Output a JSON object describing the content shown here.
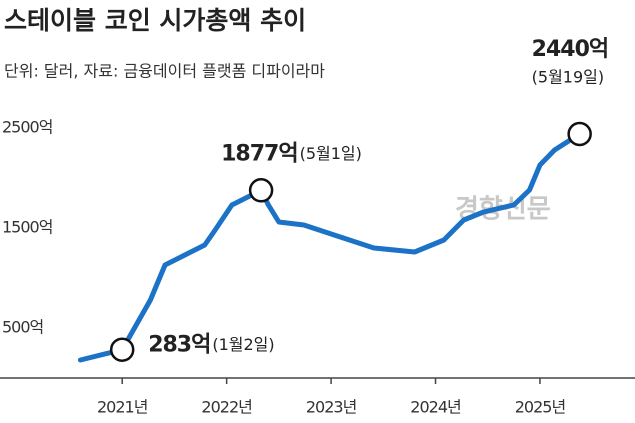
{
  "chart_data": {
    "type": "line",
    "title": "스테이블 코인 시가총액 추이",
    "subtitle": "단위: 달러, 자료: 금융데이터 플랫폼 디파이라마",
    "watermark": "경향신문",
    "x": [
      2020.6,
      2021.0,
      2021.27,
      2021.41,
      2021.6,
      2021.79,
      2021.89,
      2022.05,
      2022.33,
      2022.4,
      2022.5,
      2022.74,
      2023.03,
      2023.41,
      2023.8,
      2024.08,
      2024.27,
      2024.46,
      2024.75,
      2024.9,
      2025.0,
      2025.14,
      2025.38
    ],
    "series": [
      {
        "color": "#1b72c6",
        "values": [
          180,
          283,
          780,
          1130,
          1230,
          1330,
          1480,
          1730,
          1877,
          1730,
          1560,
          1530,
          1430,
          1300,
          1260,
          1380,
          1580,
          1660,
          1730,
          1880,
          2130,
          2280,
          2440
        ]
      }
    ],
    "annotations": [
      {
        "index": 1,
        "label": "283억",
        "note": "(1월2일)"
      },
      {
        "index": 8,
        "label": "1877억",
        "note": "(5월1일)"
      },
      {
        "index": 22,
        "label": "2440억",
        "note": "(5월19일)"
      }
    ],
    "xlim": [
      2019.83,
      2025.91
    ],
    "xticks": [
      {
        "value": 2021,
        "label": "2021년"
      },
      {
        "value": 2022,
        "label": "2022년"
      },
      {
        "value": 2023,
        "label": "2023년"
      },
      {
        "value": 2024,
        "label": "2024년"
      },
      {
        "value": 2025,
        "label": "2025년"
      }
    ],
    "ylim": [
      0,
      2600
    ],
    "yticks": [
      {
        "value": 500,
        "label": "500억"
      },
      {
        "value": 1500,
        "label": "1500억"
      },
      {
        "value": 2500,
        "label": "2500억"
      }
    ],
    "grid": false
  }
}
